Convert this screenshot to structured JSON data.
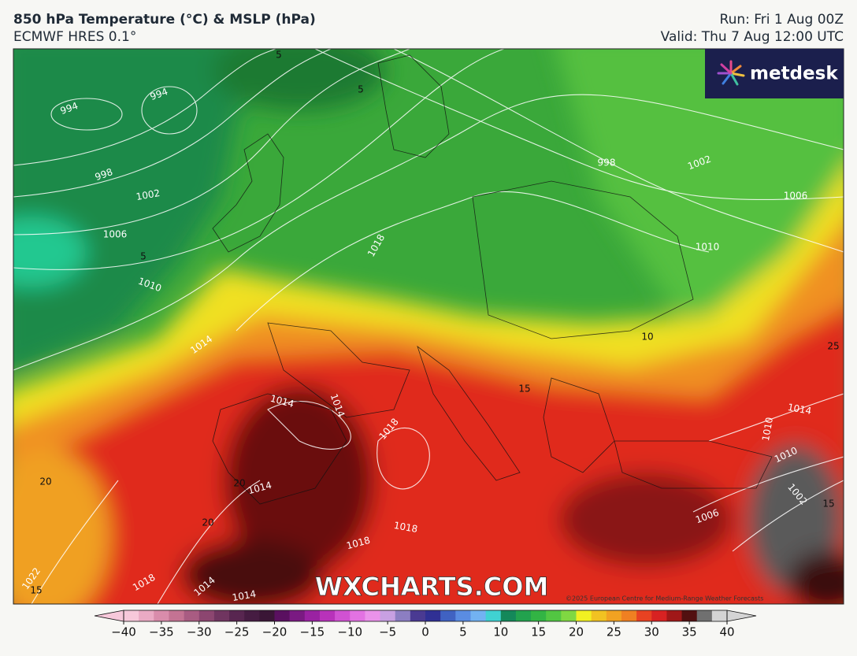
{
  "header": {
    "title": "850 hPa Temperature (°C) & MSLP (hPa)",
    "subtitle": "ECMWF HRES 0.1°",
    "run": "Run: Fri 1 Aug 00Z",
    "valid": "Valid: Thu 7 Aug 12:00 UTC"
  },
  "logo": "metdesk",
  "watermark": "WXCHARTS.COM",
  "copyright": "©2025 European Centre for Medium-Range Weather Forecasts",
  "isobar_labels": [
    994,
    994,
    998,
    1002,
    1006,
    1010,
    1014,
    1018,
    998,
    1002,
    1006,
    1010,
    1014,
    1014,
    1018,
    1014,
    1018,
    1018,
    1022,
    1018,
    1014,
    1014,
    1010,
    1014,
    1010,
    1006,
    1002
  ],
  "temperature_labels": [
    5,
    5,
    5,
    10,
    15,
    20,
    15,
    20,
    20,
    15,
    25
  ],
  "colorbar": {
    "range": [
      -40,
      40
    ],
    "ticks": [
      {
        "value": -40,
        "label": "−40"
      },
      {
        "value": -35,
        "label": "−35"
      },
      {
        "value": -30,
        "label": "−30"
      },
      {
        "value": -25,
        "label": "−25"
      },
      {
        "value": -20,
        "label": "−20"
      },
      {
        "value": -15,
        "label": "−15"
      },
      {
        "value": -10,
        "label": "−10"
      },
      {
        "value": -5,
        "label": "−5"
      },
      0,
      5,
      10,
      15,
      20,
      25,
      30,
      35,
      40
    ],
    "colors": [
      "#f7c8da",
      "#eaaac4",
      "#d98cab",
      "#c47393",
      "#a95c82",
      "#8c4670",
      "#703560",
      "#582650",
      "#461c42",
      "#3a1636",
      "#5a1060",
      "#7a1a82",
      "#9a22a2",
      "#b832ba",
      "#d052d2",
      "#e272e2",
      "#ea92ea",
      "#c8a0e2",
      "#8c7ec2",
      "#4a3a92",
      "#303094",
      "#4062c2",
      "#5a8ce2",
      "#72b2f2",
      "#40d2d2",
      "#14885a",
      "#22a24e",
      "#32b444",
      "#52c642",
      "#80d842",
      "#f2f022",
      "#f2c222",
      "#f2a222",
      "#f08022",
      "#e84222",
      "#d82222",
      "#a01818",
      "#521010",
      "#707070",
      "#d4d4d4"
    ]
  }
}
